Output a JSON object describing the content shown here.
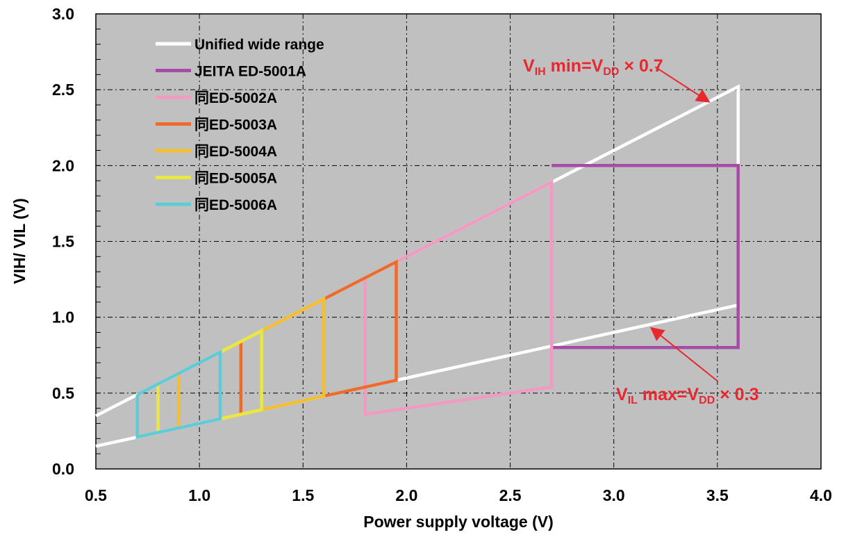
{
  "chart_data": {
    "type": "line",
    "xlabel": "Power supply voltage (V)",
    "ylabel": "VIH/ VIL (V)",
    "xlim": [
      0.5,
      4.0
    ],
    "ylim": [
      0.0,
      3.0
    ],
    "x_ticks": [
      "0.5",
      "1.0",
      "1.5",
      "2.0",
      "2.5",
      "3.0",
      "3.5",
      "4.0"
    ],
    "y_ticks": [
      "0.0",
      "0.5",
      "1.0",
      "1.5",
      "2.0",
      "2.5",
      "3.0"
    ],
    "grid": true,
    "background": "#c0c0c0",
    "legend_position": "top-left",
    "series": [
      {
        "name": "Unified wide range",
        "color": "#ffffff",
        "segments": [
          [
            [
              0.5,
              0.35
            ],
            [
              3.6,
              2.52
            ],
            [
              3.6,
              2.0
            ]
          ],
          [
            [
              0.5,
              0.15
            ],
            [
              3.6,
              1.08
            ]
          ]
        ]
      },
      {
        "name": "JEITA ED-5001A",
        "color": "#a64ca6",
        "segments": [
          [
            [
              2.7,
              2.0
            ],
            [
              3.6,
              2.0
            ],
            [
              3.6,
              0.8
            ],
            [
              2.7,
              0.8
            ]
          ]
        ]
      },
      {
        "name": "同ED-5002A",
        "color": "#f29ac2",
        "segments": [
          [
            [
              1.8,
              1.26
            ],
            [
              1.8,
              0.36
            ],
            [
              2.7,
              0.54
            ],
            [
              2.7,
              1.89
            ],
            [
              1.95,
              1.365
            ]
          ]
        ]
      },
      {
        "name": "同ED-5003A",
        "color": "#ed6b2c",
        "segments": [
          [
            [
              1.6,
              1.12
            ],
            [
              1.95,
              1.365
            ],
            [
              1.95,
              0.585
            ],
            [
              1.6,
              0.48
            ]
          ],
          [
            [
              1.2,
              0.84
            ],
            [
              1.2,
              0.36
            ]
          ]
        ]
      },
      {
        "name": "同ED-5004A",
        "color": "#f5be2c",
        "segments": [
          [
            [
              1.1,
              0.77
            ],
            [
              1.6,
              1.12
            ],
            [
              1.6,
              0.48
            ],
            [
              1.1,
              0.33
            ]
          ],
          [
            [
              0.9,
              0.63
            ],
            [
              0.9,
              0.27
            ]
          ]
        ]
      },
      {
        "name": "同ED-5005A",
        "color": "#e8e840",
        "segments": [
          [
            [
              1.1,
              0.77
            ],
            [
              1.3,
              0.91
            ],
            [
              1.3,
              0.39
            ],
            [
              1.1,
              0.33
            ]
          ],
          [
            [
              0.8,
              0.56
            ],
            [
              0.8,
              0.24
            ]
          ]
        ]
      },
      {
        "name": "同ED-5006A",
        "color": "#5ecbd6",
        "segments": [
          [
            [
              0.7,
              0.49
            ],
            [
              1.1,
              0.77
            ],
            [
              1.1,
              0.33
            ],
            [
              0.7,
              0.21
            ],
            [
              0.7,
              0.49
            ]
          ]
        ]
      }
    ],
    "annotations": [
      {
        "parts": [
          "V",
          "IH",
          " min=V",
          "DD",
          " × 0.7"
        ],
        "color": "#e8272f",
        "arrow_from": [
          3.2,
          2.65
        ],
        "arrow_to": [
          3.46,
          2.42
        ]
      },
      {
        "parts": [
          "V",
          "IL",
          " max=V",
          "DD",
          " × 0.3"
        ],
        "color": "#e8272f",
        "arrow_from": [
          3.5,
          0.58
        ],
        "arrow_to": [
          3.18,
          0.93
        ]
      }
    ]
  }
}
